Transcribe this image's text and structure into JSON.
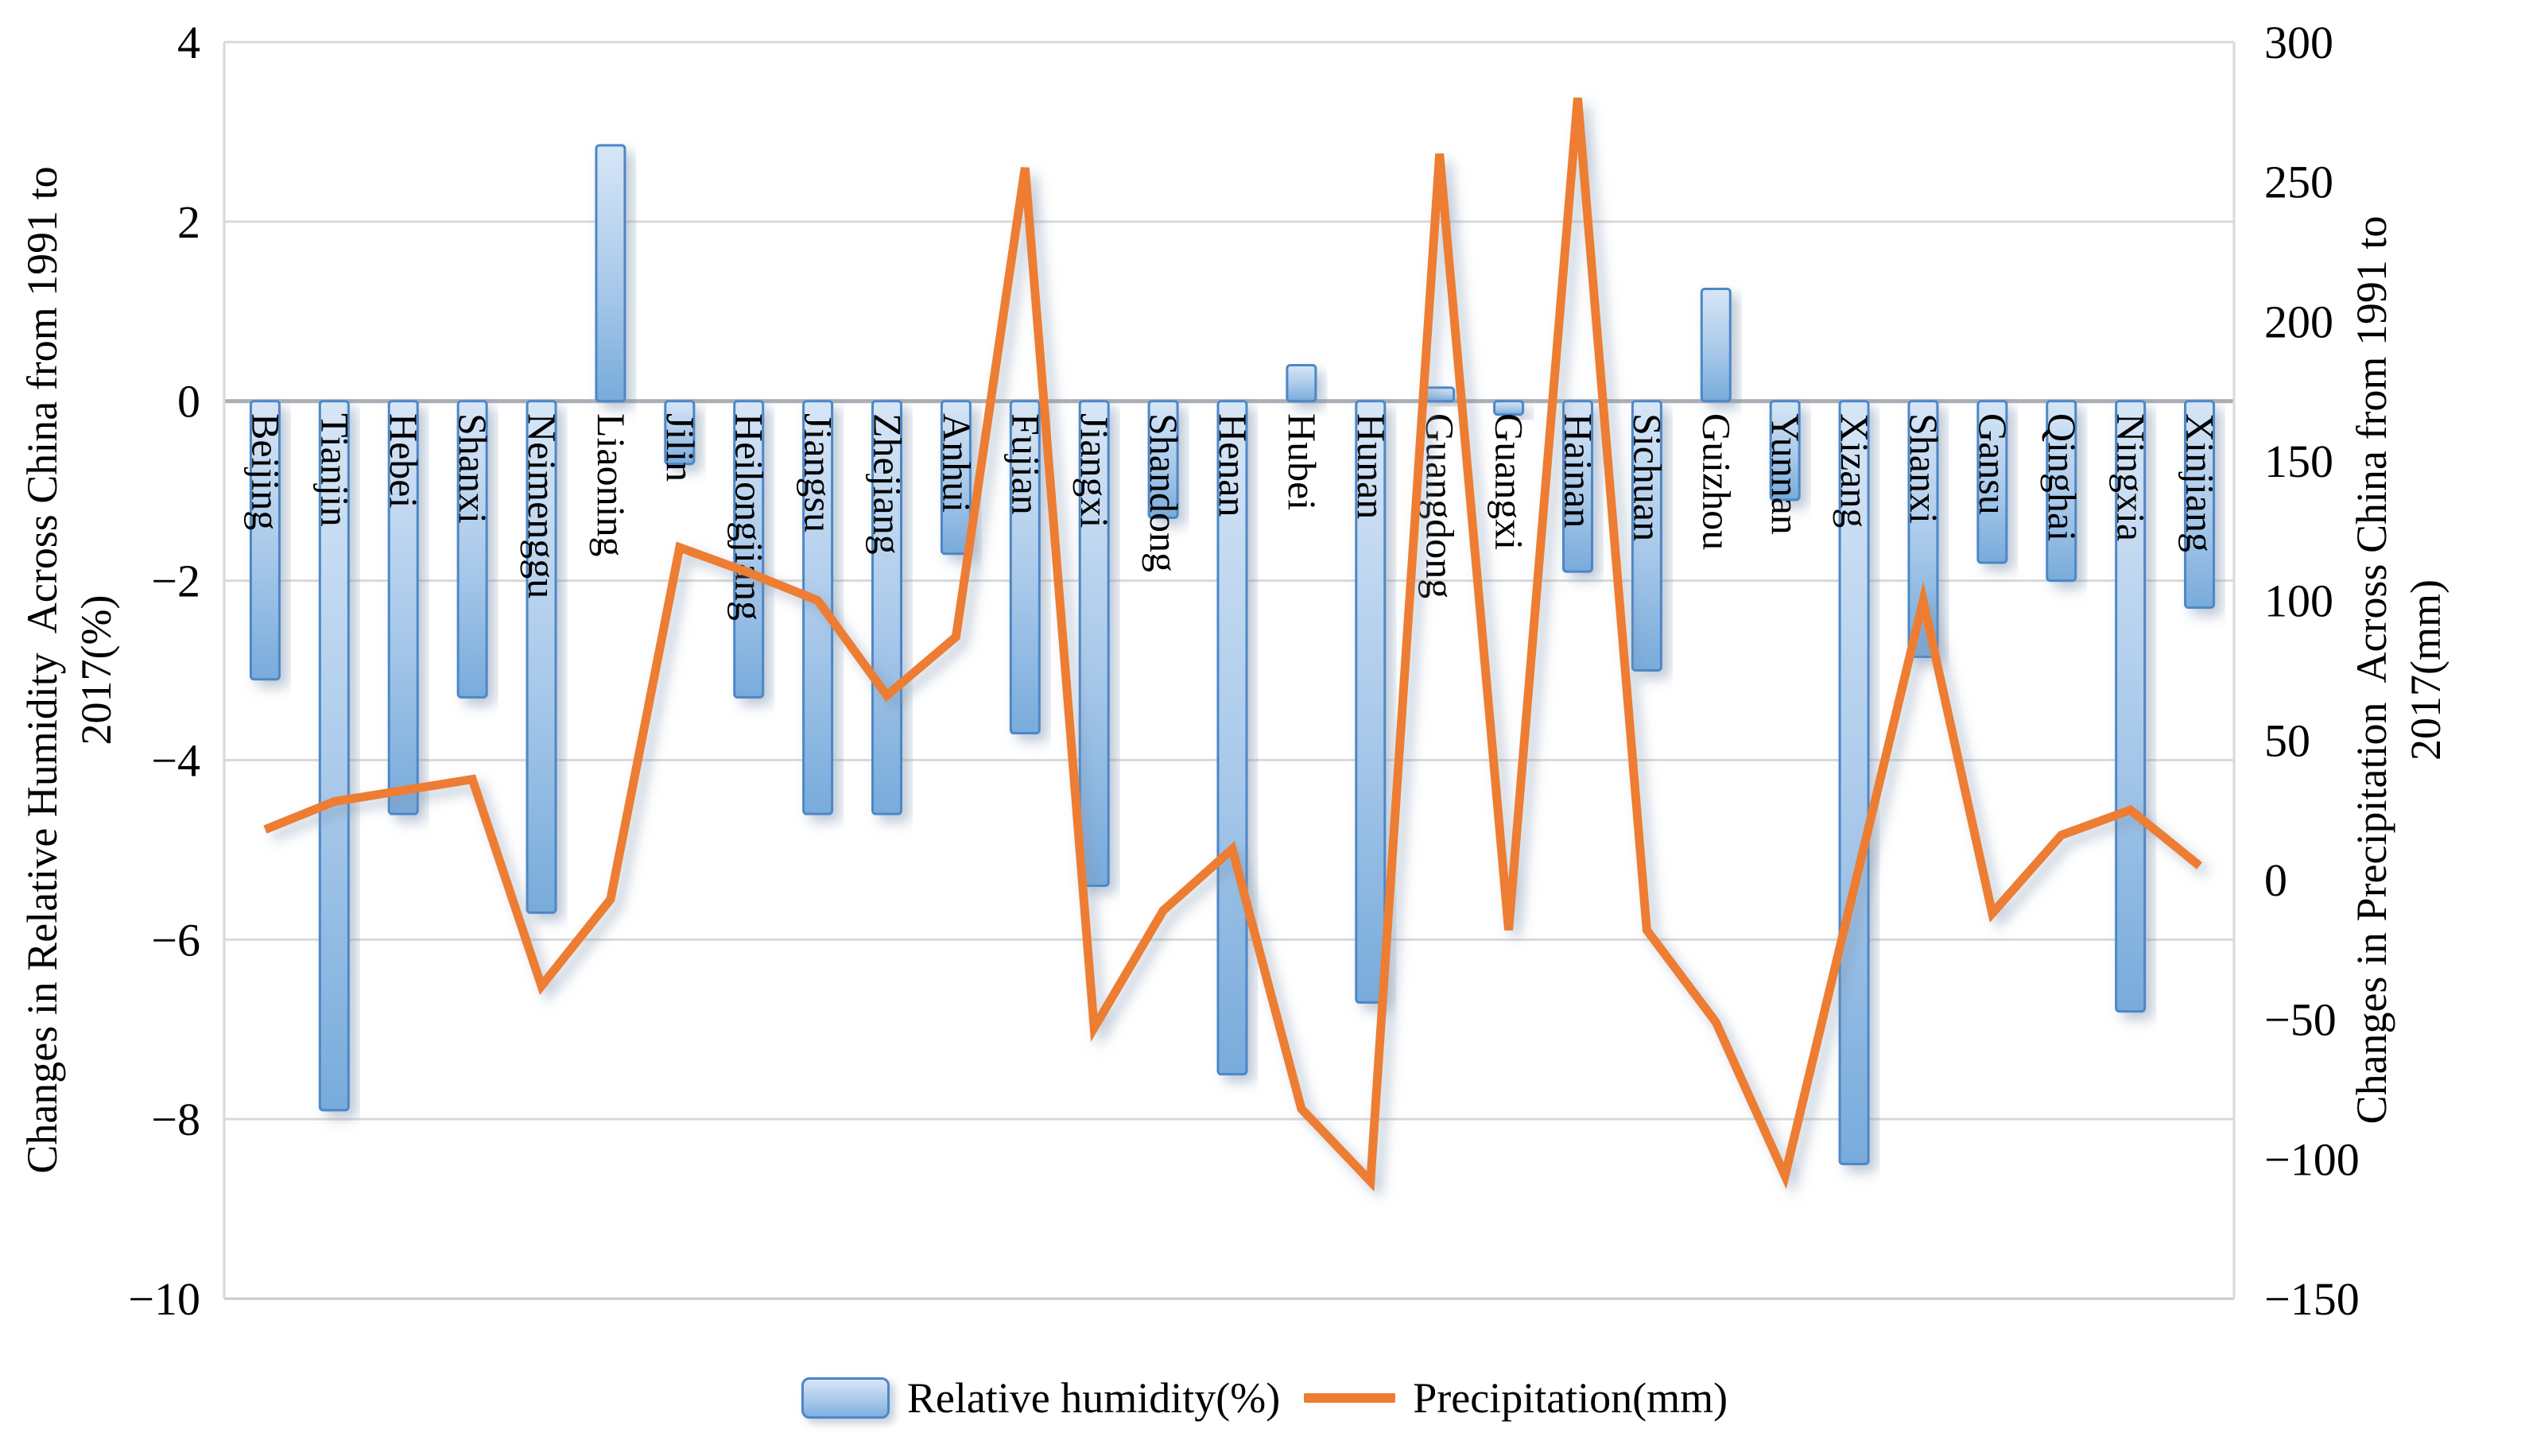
{
  "chart_data": {
    "type": "combo-bar-line",
    "title": "",
    "categories": [
      "Beijing",
      "Tianjin",
      "Hebei",
      "Shanxi",
      "Neimenggu",
      "Liaoning",
      "Jilin",
      "Heilongjiang",
      "Jiangsu",
      "Zhejiang",
      "Anhui",
      "Fujian",
      "Jiangxi",
      "Shandong",
      "Henan",
      "Hubei",
      "Hunan",
      "Guangdong",
      "Guangxi",
      "Hainan",
      "Sichuan",
      "Guizhou",
      "Yunnan",
      "Xizang",
      "Shanxi",
      "Gansu",
      "Qinghai",
      "Ningxia",
      "Xinjiang"
    ],
    "series": [
      {
        "name": "Relative humidity(%)",
        "type": "bar",
        "axis": "left",
        "values": [
          -3.1,
          -7.9,
          -4.6,
          -3.3,
          -5.7,
          2.85,
          -0.7,
          -3.3,
          -4.6,
          -4.6,
          -1.7,
          -3.7,
          -5.4,
          -1.3,
          -7.5,
          0.4,
          -6.7,
          0.15,
          -0.15,
          -1.9,
          -3.0,
          1.25,
          -1.1,
          -8.5,
          -2.85,
          -1.8,
          -2.0,
          -6.8,
          -2.3
        ]
      },
      {
        "name": "Precipitation(mm)",
        "type": "line",
        "axis": "right",
        "values": [
          18,
          28,
          32,
          36,
          -38,
          -7,
          119,
          110,
          100,
          66,
          87,
          255,
          -53,
          -11,
          11,
          -82,
          -108,
          260,
          -18,
          280,
          -18,
          -51,
          -106,
          -3,
          100,
          -12,
          16,
          25,
          5
        ]
      }
    ],
    "left_axis": {
      "title_line1": "Changes in Relative Humidity  Across China from 1991 to",
      "title_line2": "2017(%)",
      "min": -10,
      "max": 4,
      "ticks": [
        4,
        2,
        0,
        -2,
        -4,
        -6,
        -8,
        -10
      ]
    },
    "right_axis": {
      "title_line1": "Changes in Precipitation  Across China from 1991 to",
      "title_line2": "2017(mm)",
      "min": -150,
      "max": 300,
      "ticks": [
        300,
        250,
        200,
        150,
        100,
        50,
        0,
        -50,
        -100,
        -150
      ]
    },
    "legend": {
      "bar_label": "Relative humidity(%)",
      "line_label": "Precipitation(mm)"
    },
    "grid": "horizontal gridlines at every left-axis tick",
    "colors": {
      "bar_fill_top": "#d7e6f6",
      "bar_fill_mid": "#a9c9ea",
      "bar_fill_bottom": "#78abdb",
      "bar_border": "#4d87c7",
      "line": "#ed7d31",
      "gridline": "#d9d9d9",
      "zero_line": "#a9afb5",
      "axis_line": "#c9c9c9",
      "text": "#000000"
    }
  }
}
